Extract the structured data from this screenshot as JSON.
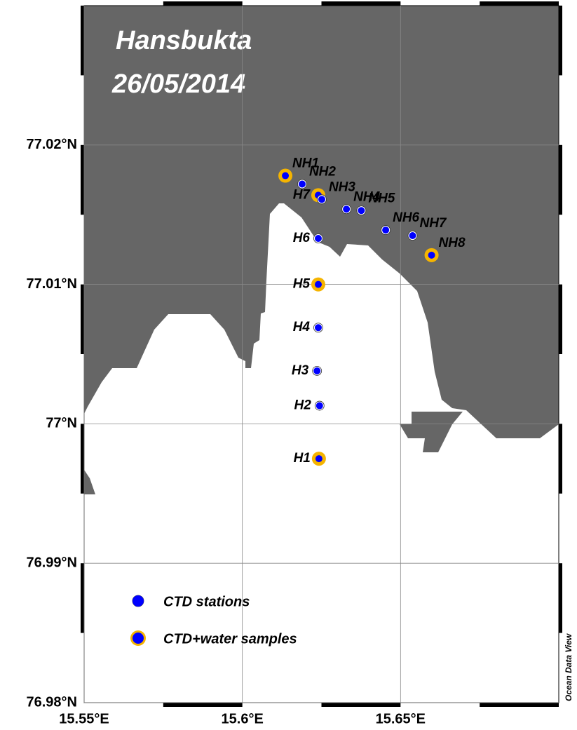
{
  "map": {
    "type": "station-map",
    "title": "Hansbukta",
    "subtitle": "26/05/2014",
    "xlim": [
      15.55,
      15.7
    ],
    "ylim": [
      76.98,
      77.03
    ],
    "xticks": [
      {
        "value": 15.55,
        "label": "15.55°E"
      },
      {
        "value": 15.6,
        "label": "15.6°E"
      },
      {
        "value": 15.65,
        "label": "15.65°E"
      }
    ],
    "yticks": [
      {
        "value": 76.98,
        "label": "76.98°N"
      },
      {
        "value": 76.99,
        "label": "76.99°N"
      },
      {
        "value": 77.0,
        "label": "77°N"
      },
      {
        "value": 77.01,
        "label": "77.01°N"
      },
      {
        "value": 77.02,
        "label": "77.02°N"
      }
    ],
    "grid": true,
    "land_color": "#666666",
    "station_color": "#0000ff",
    "sample_color": "#f5b400",
    "stations": [
      {
        "name": "NH1",
        "lon": 15.6136,
        "lat": 77.0178,
        "water": true
      },
      {
        "name": "NH2",
        "lon": 15.6189,
        "lat": 77.0172,
        "water": false
      },
      {
        "name": "H7",
        "lon": 15.624,
        "lat": 77.0164,
        "water": true
      },
      {
        "name": "NH3",
        "lon": 15.6251,
        "lat": 77.0161,
        "water": false
      },
      {
        "name": "NH4",
        "lon": 15.6329,
        "lat": 77.0154,
        "water": false
      },
      {
        "name": "NH5",
        "lon": 15.6376,
        "lat": 77.0153,
        "water": false
      },
      {
        "name": "NH6",
        "lon": 15.6453,
        "lat": 77.0139,
        "water": false
      },
      {
        "name": "NH7",
        "lon": 15.6538,
        "lat": 77.0135,
        "water": false
      },
      {
        "name": "NH8",
        "lon": 15.6598,
        "lat": 77.0121,
        "water": true
      },
      {
        "name": "H6",
        "lon": 15.624,
        "lat": 77.0133,
        "water": false
      },
      {
        "name": "H5",
        "lon": 15.624,
        "lat": 77.01,
        "water": true
      },
      {
        "name": "H4",
        "lon": 15.624,
        "lat": 77.0069,
        "water": false
      },
      {
        "name": "H3",
        "lon": 15.6236,
        "lat": 77.0038,
        "water": false
      },
      {
        "name": "H2",
        "lon": 15.6244,
        "lat": 77.0013,
        "water": false
      },
      {
        "name": "H1",
        "lon": 15.6242,
        "lat": 76.9975,
        "water": true
      }
    ],
    "legend": [
      {
        "label": "CTD stations",
        "water": false
      },
      {
        "label": "CTD+water samples",
        "water": true
      }
    ],
    "credit": "Ocean Data View"
  }
}
